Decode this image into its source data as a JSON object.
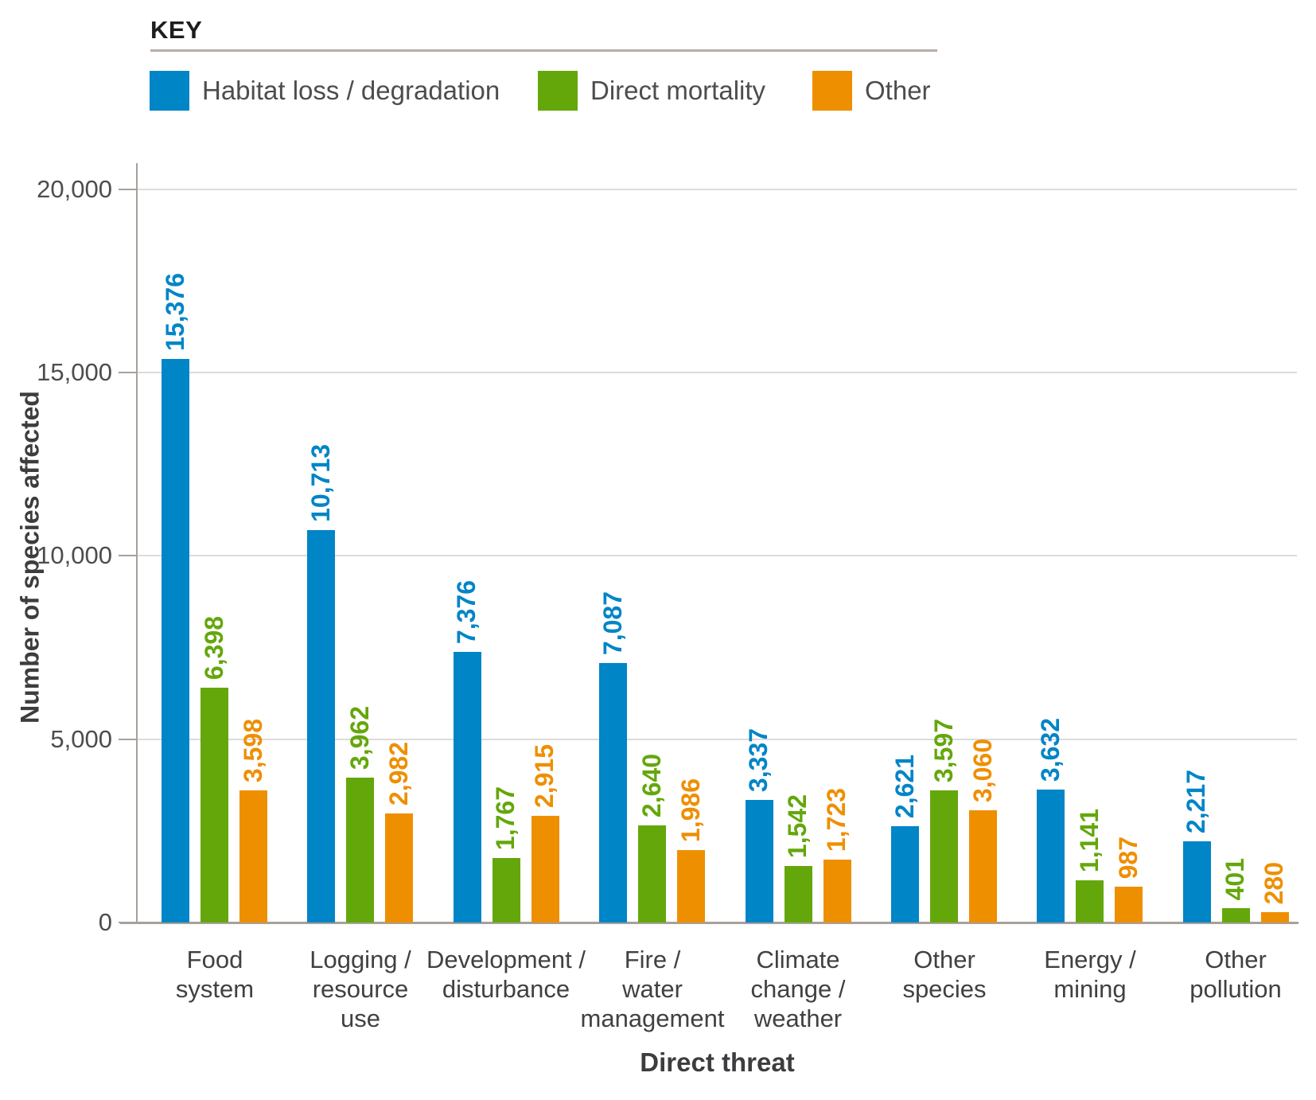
{
  "legend": {
    "title": "KEY",
    "items": [
      {
        "label": "Habitat loss / degradation",
        "color": "#0085C7"
      },
      {
        "label": "Direct mortality",
        "color": "#64A70B"
      },
      {
        "label": "Other",
        "color": "#EE8F00"
      }
    ]
  },
  "chart_data": {
    "type": "bar",
    "title": "",
    "xlabel": "Direct threat",
    "ylabel": "Number of species affected",
    "ylim": [
      0,
      20000
    ],
    "yticks": [
      0,
      5000,
      10000,
      15000,
      20000
    ],
    "ytick_labels": [
      "0",
      "5,000",
      "10,000",
      "15,000",
      "20,000"
    ],
    "grid": true,
    "legend_position": "top-left",
    "categories": [
      "Food system",
      "Logging / resource use",
      "Development / disturbance",
      "Fire / water management",
      "Climate change / weather",
      "Other species",
      "Energy / mining",
      "Other pollution"
    ],
    "category_lines": [
      [
        "Food",
        "system"
      ],
      [
        "Logging /",
        "resource",
        "use"
      ],
      [
        "Development /",
        "disturbance"
      ],
      [
        "Fire /",
        "water",
        "management"
      ],
      [
        "Climate",
        "change /",
        "weather"
      ],
      [
        "Other",
        "species"
      ],
      [
        "Energy /",
        "mining"
      ],
      [
        "Other",
        "pollution"
      ]
    ],
    "series": [
      {
        "name": "Habitat loss / degradation",
        "color": "#0085C7",
        "values": [
          15376,
          10713,
          7376,
          7087,
          3337,
          2621,
          3632,
          2217
        ],
        "display_values": [
          "15,376",
          "10,713",
          "7,376",
          "7,087",
          "3,337",
          "2,621",
          "3,632",
          "2,217"
        ]
      },
      {
        "name": "Direct mortality",
        "color": "#64A70B",
        "values": [
          6398,
          3962,
          1767,
          2640,
          1542,
          3597,
          1141,
          401
        ],
        "display_values": [
          "6,398",
          "3,962",
          "1,767",
          "2,640",
          "1,542",
          "3,597",
          "1,141",
          "401"
        ]
      },
      {
        "name": "Other",
        "color": "#EE8F00",
        "values": [
          3598,
          2982,
          2915,
          1986,
          1723,
          3060,
          987,
          280
        ],
        "display_values": [
          "3,598",
          "2,982",
          "2,915",
          "1,986",
          "1,723",
          "3,060",
          "987",
          "280"
        ]
      }
    ]
  }
}
